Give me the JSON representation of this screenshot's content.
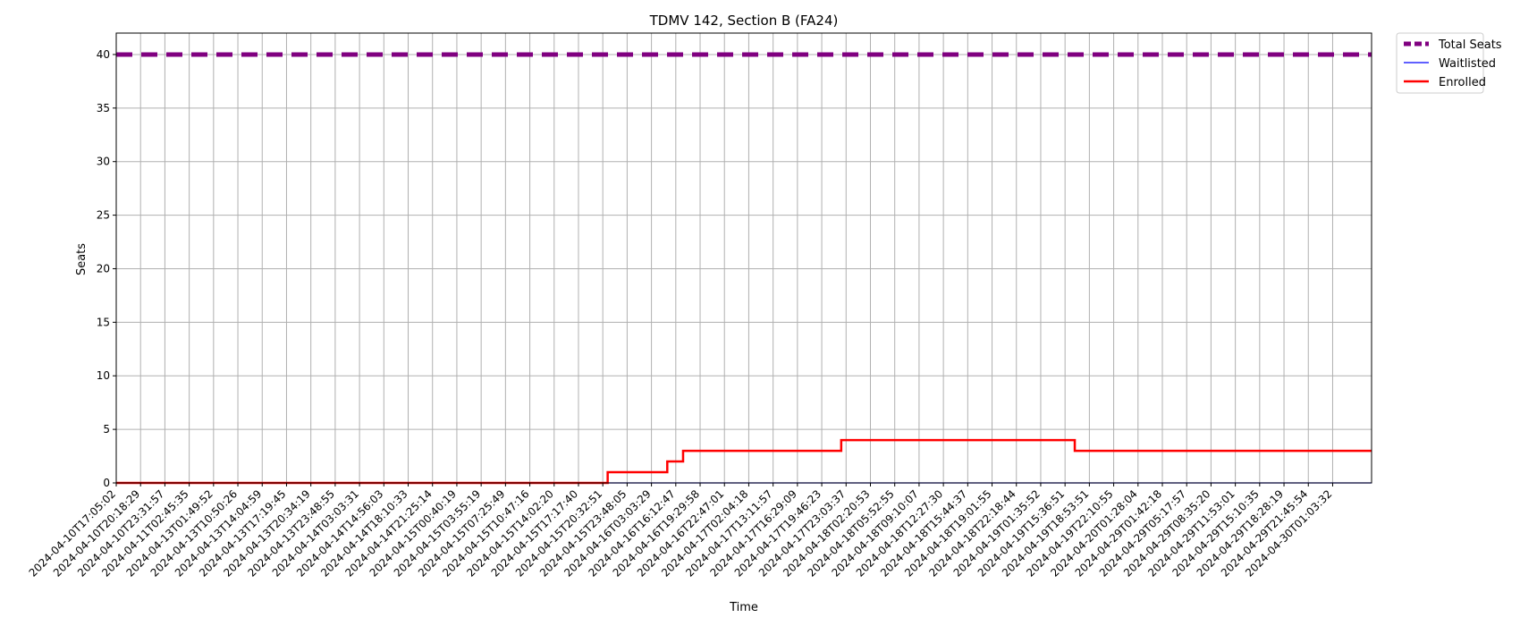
{
  "chart_data": {
    "type": "line",
    "title": "TDMV 142, Section B (FA24)",
    "xlabel": "Time",
    "ylabel": "Seats",
    "ylim": [
      0,
      42
    ],
    "yticks": [
      0,
      5,
      10,
      15,
      20,
      25,
      30,
      35,
      40
    ],
    "grid": true,
    "legend_position": "outside-top-right",
    "x_labels": [
      "2024-04-10T17:05:02",
      "2024-04-10T20:18:29",
      "2024-04-10T23:31:57",
      "2024-04-11T02:45:35",
      "2024-04-13T01:49:52",
      "2024-04-13T10:50:26",
      "2024-04-13T14:04:59",
      "2024-04-13T17:19:45",
      "2024-04-13T20:34:19",
      "2024-04-13T23:48:55",
      "2024-04-14T03:03:31",
      "2024-04-14T14:56:03",
      "2024-04-14T18:10:33",
      "2024-04-14T21:25:14",
      "2024-04-15T00:40:19",
      "2024-04-15T03:55:19",
      "2024-04-15T07:25:49",
      "2024-04-15T10:47:16",
      "2024-04-15T14:02:20",
      "2024-04-15T17:17:40",
      "2024-04-15T20:32:51",
      "2024-04-15T23:48:05",
      "2024-04-16T03:03:29",
      "2024-04-16T16:12:47",
      "2024-04-16T19:29:58",
      "2024-04-16T22:47:01",
      "2024-04-17T02:04:18",
      "2024-04-17T13:11:57",
      "2024-04-17T16:29:09",
      "2024-04-17T19:46:23",
      "2024-04-17T23:03:37",
      "2024-04-18T02:20:53",
      "2024-04-18T05:52:55",
      "2024-04-18T09:10:07",
      "2024-04-18T12:27:30",
      "2024-04-18T15:44:37",
      "2024-04-18T19:01:55",
      "2024-04-18T22:18:44",
      "2024-04-19T01:35:52",
      "2024-04-19T15:36:51",
      "2024-04-19T18:53:51",
      "2024-04-19T22:10:55",
      "2024-04-20T01:28:04",
      "2024-04-29T01:42:18",
      "2024-04-29T05:17:57",
      "2024-04-29T08:35:20",
      "2024-04-29T11:53:01",
      "2024-04-29T15:10:35",
      "2024-04-29T18:28:19",
      "2024-04-29T21:45:54",
      "2024-04-30T01:03:32"
    ],
    "x_range": [
      0,
      51.6
    ],
    "series": [
      {
        "name": "Total Seats",
        "color": "#800080",
        "style": "dashed",
        "points": [
          [
            0,
            40
          ],
          [
            51.6,
            40
          ]
        ]
      },
      {
        "name": "Waitlisted",
        "color": "#0000ff",
        "style": "solid",
        "points": [
          [
            0,
            0
          ],
          [
            51.6,
            0
          ]
        ]
      },
      {
        "name": "Enrolled",
        "color": "#ff0000",
        "style": "step",
        "points": [
          [
            0,
            0
          ],
          [
            20.2,
            0
          ],
          [
            20.2,
            1
          ],
          [
            22.65,
            1
          ],
          [
            22.65,
            2
          ],
          [
            23.3,
            2
          ],
          [
            23.3,
            3
          ],
          [
            29.8,
            3
          ],
          [
            29.8,
            4
          ],
          [
            39.4,
            4
          ],
          [
            39.4,
            3
          ],
          [
            51.6,
            3
          ]
        ]
      }
    ]
  }
}
